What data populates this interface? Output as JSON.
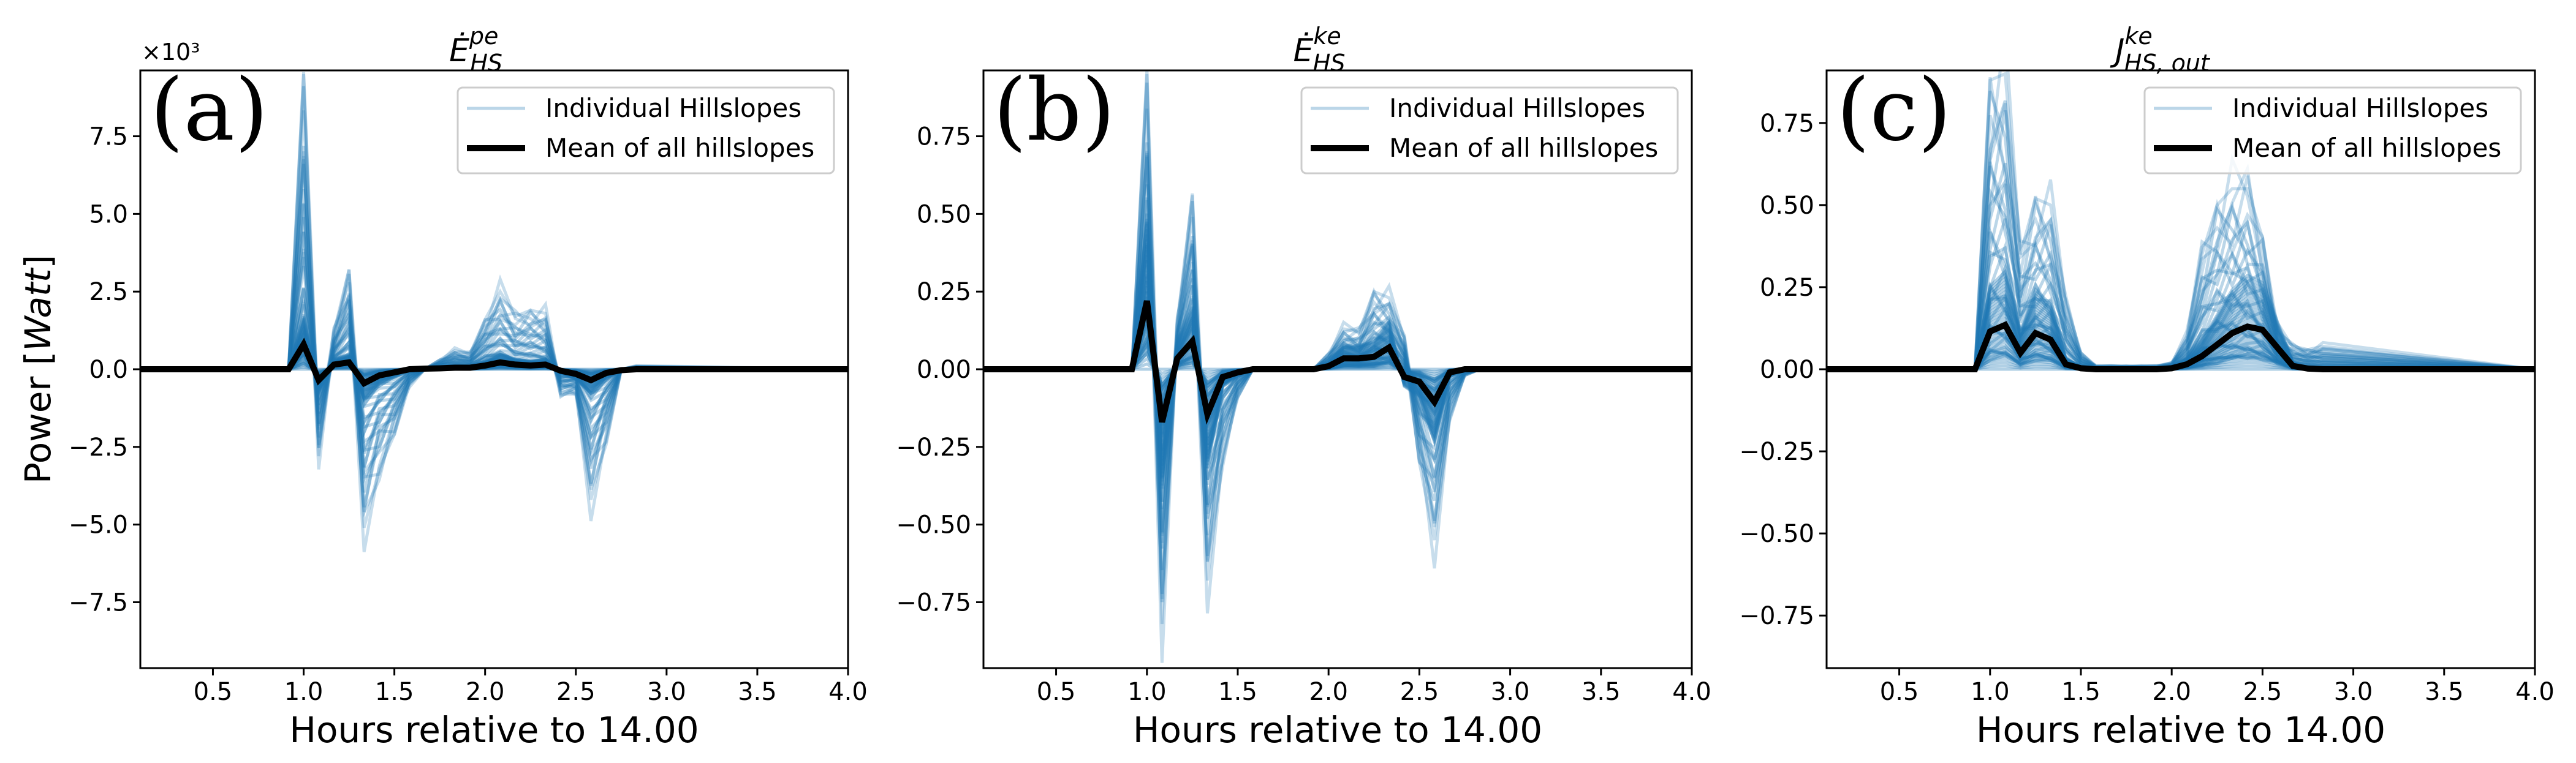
{
  "figure": {
    "ylabel": "Power [Watt]",
    "ylabel_main": "Power [",
    "ylabel_unit": "Watt",
    "ylabel_end": "]",
    "line_color": "#1f77b4",
    "mean_color": "#000000"
  },
  "chart_data": [
    {
      "type": "line",
      "panel_label": "(a)",
      "title": "Ė^pe_HS",
      "title_main": "Ė",
      "title_sup": "pe",
      "title_sub": "HS",
      "xlabel": "Hours relative to 14.00",
      "ylabel": "Power [Watt]",
      "offset_text": "×10³",
      "xlim": [
        0.1,
        4.0
      ],
      "ylim": [
        -9.62,
        9.62
      ],
      "xticks": [
        0.5,
        1.0,
        1.5,
        2.0,
        2.5,
        3.0,
        3.5,
        4.0
      ],
      "xtick_labels": [
        "0.5",
        "1.0",
        "1.5",
        "2.0",
        "2.5",
        "3.0",
        "3.5",
        "4.0"
      ],
      "yticks": [
        -7.5,
        -5.0,
        -2.5,
        0.0,
        2.5,
        5.0,
        7.5
      ],
      "ytick_labels": [
        "−7.5",
        "−5.0",
        "−2.5",
        "0.0",
        "2.5",
        "5.0",
        "7.5"
      ],
      "legend": {
        "position": "top-right",
        "entries": [
          "Individual Hillslopes",
          "Mean of all hillslopes"
        ]
      },
      "x": [
        0.1,
        0.917,
        1.0,
        1.083,
        1.167,
        1.25,
        1.333,
        1.417,
        1.5,
        1.583,
        1.667,
        1.75,
        1.833,
        1.917,
        2.0,
        2.083,
        2.167,
        2.25,
        2.333,
        2.417,
        2.5,
        2.583,
        2.667,
        2.75,
        2.833,
        4.0
      ],
      "mean": [
        0,
        0,
        0.8,
        -0.35,
        0.15,
        0.22,
        -0.45,
        -0.2,
        -0.1,
        0,
        0.02,
        0.03,
        0.05,
        0.05,
        0.12,
        0.22,
        0.15,
        0.12,
        0.15,
        -0.05,
        -0.15,
        -0.35,
        -0.12,
        -0.03,
        0,
        0
      ],
      "outlier": [
        0,
        0,
        9.5,
        -2.8,
        1.2,
        3.2,
        -5.1,
        -3.2,
        -2.1,
        -0.5,
        0,
        0.3,
        0.6,
        0.5,
        1.6,
        2.5,
        1.7,
        1.9,
        1.8,
        -0.8,
        -0.8,
        -4.2,
        -2.2,
        0,
        0.1,
        0
      ]
    },
    {
      "type": "line",
      "panel_label": "(b)",
      "title": "Ė^ke_HS",
      "title_main": "Ė",
      "title_sup": "ke",
      "title_sub": "HS",
      "xlabel": "Hours relative to 14.00",
      "xlim": [
        0.1,
        4.0
      ],
      "ylim": [
        -0.962,
        0.962
      ],
      "xticks": [
        0.5,
        1.0,
        1.5,
        2.0,
        2.5,
        3.0,
        3.5,
        4.0
      ],
      "xtick_labels": [
        "0.5",
        "1.0",
        "1.5",
        "2.0",
        "2.5",
        "3.0",
        "3.5",
        "4.0"
      ],
      "yticks": [
        -0.75,
        -0.5,
        -0.25,
        0.0,
        0.25,
        0.5,
        0.75
      ],
      "ytick_labels": [
        "−0.75",
        "−0.50",
        "−0.25",
        "0.00",
        "0.25",
        "0.50",
        "0.75"
      ],
      "legend": {
        "position": "top-right",
        "entries": [
          "Individual Hillslopes",
          "Mean of all hillslopes"
        ]
      },
      "x": [
        0.1,
        0.917,
        1.0,
        1.083,
        1.167,
        1.25,
        1.333,
        1.417,
        1.5,
        1.583,
        1.667,
        1.75,
        1.833,
        1.917,
        2.0,
        2.083,
        2.167,
        2.25,
        2.333,
        2.417,
        2.5,
        2.583,
        2.667,
        2.75,
        2.833,
        4.0
      ],
      "mean": [
        0,
        0,
        0.22,
        -0.17,
        0.035,
        0.09,
        -0.145,
        -0.025,
        -0.01,
        0,
        0,
        0,
        0,
        0,
        0.01,
        0.035,
        0.035,
        0.04,
        0.07,
        -0.025,
        -0.04,
        -0.105,
        -0.01,
        0,
        0,
        0
      ],
      "outlier": [
        0,
        0,
        0.95,
        -0.82,
        0.15,
        0.56,
        -0.68,
        -0.28,
        -0.09,
        0,
        0,
        0,
        0,
        0,
        0.05,
        0.13,
        0.12,
        0.25,
        0.23,
        0.1,
        -0.3,
        -0.55,
        -0.15,
        -0.02,
        0,
        0
      ]
    },
    {
      "type": "line",
      "panel_label": "(c)",
      "title": "J^ke_HS,out",
      "title_main": "J",
      "title_sup": "ke",
      "title_sub": "HS, out",
      "xlabel": "Hours relative to 14.00",
      "xlim": [
        0.1,
        4.0
      ],
      "ylim": [
        -0.91,
        0.91
      ],
      "xticks": [
        0.5,
        1.0,
        1.5,
        2.0,
        2.5,
        3.0,
        3.5,
        4.0
      ],
      "xtick_labels": [
        "0.5",
        "1.0",
        "1.5",
        "2.0",
        "2.5",
        "3.0",
        "3.5",
        "4.0"
      ],
      "yticks": [
        -0.75,
        -0.5,
        -0.25,
        0.0,
        0.25,
        0.5,
        0.75
      ],
      "ytick_labels": [
        "−0.75",
        "−0.50",
        "−0.25",
        "0.00",
        "0.25",
        "0.50",
        "0.75"
      ],
      "legend": {
        "position": "top-right",
        "entries": [
          "Individual Hillslopes",
          "Mean of all hillslopes"
        ]
      },
      "x": [
        0.1,
        0.917,
        1.0,
        1.083,
        1.167,
        1.25,
        1.333,
        1.417,
        1.5,
        1.583,
        1.667,
        1.75,
        1.833,
        1.917,
        2.0,
        2.083,
        2.167,
        2.25,
        2.333,
        2.417,
        2.5,
        2.583,
        2.667,
        2.75,
        2.833,
        4.0
      ],
      "mean": [
        0,
        0,
        0.115,
        0.135,
        0.05,
        0.11,
        0.09,
        0.015,
        0.003,
        0,
        0,
        0,
        0,
        0,
        0.003,
        0.015,
        0.04,
        0.075,
        0.11,
        0.13,
        0.12,
        0.065,
        0.01,
        0.002,
        0,
        0
      ],
      "outlier": [
        0,
        0,
        0.88,
        0.9,
        0.35,
        0.52,
        0.5,
        0.2,
        0.05,
        0.01,
        0.01,
        0.01,
        0.01,
        0.01,
        0.02,
        0.1,
        0.35,
        0.5,
        0.55,
        0.55,
        0.4,
        0.12,
        0.07,
        0.06,
        0.07,
        0
      ]
    }
  ]
}
